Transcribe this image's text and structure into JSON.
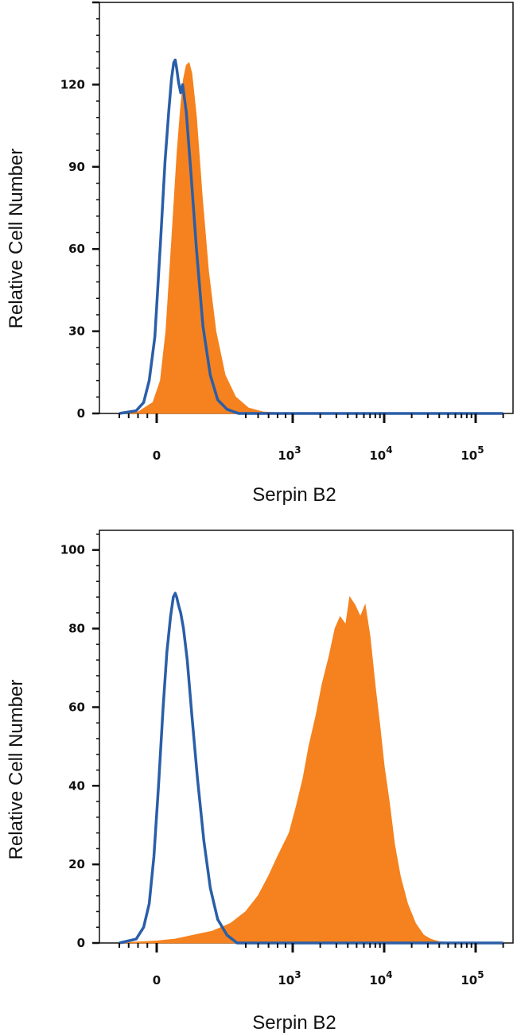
{
  "chart_data": [
    {
      "type": "area",
      "xscale": "biexponential",
      "xlabel": "Serpin B2",
      "ylabel": "Relative Cell Number",
      "ylim": [
        0,
        150
      ],
      "yticks": [
        0,
        30,
        60,
        90,
        120
      ],
      "ytick_labels": [
        "0",
        "30",
        "60",
        "90",
        "120"
      ],
      "xticks": [
        {
          "value": 0,
          "base": "0",
          "exp": ""
        },
        {
          "value": 1000,
          "base": "10",
          "exp": "3"
        },
        {
          "value": 10000,
          "base": "10",
          "exp": "4"
        },
        {
          "value": 100000,
          "base": "10",
          "exp": "5"
        }
      ],
      "grid": false,
      "legend": "none",
      "series": [
        {
          "style": "filled",
          "color": "#f5821f",
          "x": [
            -200,
            -100,
            -20,
            20,
            50,
            80,
            110,
            130,
            145,
            160,
            175,
            190,
            215,
            245,
            280,
            320,
            370,
            430,
            520,
            650,
            850,
            1000,
            2000,
            5000,
            20000,
            200000
          ],
          "y": [
            0,
            0.5,
            4,
            12,
            30,
            62,
            95,
            112,
            122,
            127,
            128,
            124,
            108,
            80,
            52,
            30,
            14,
            6,
            2,
            0.5,
            0.2,
            0,
            0,
            0,
            0,
            0
          ]
        },
        {
          "style": "outline",
          "color": "#2a5ea8",
          "x": [
            -200,
            -110,
            -70,
            -40,
            -10,
            20,
            45,
            65,
            80,
            92,
            100,
            108,
            118,
            130,
            140,
            160,
            185,
            215,
            250,
            290,
            330,
            380,
            450,
            700,
            1000,
            200000
          ],
          "y": [
            0,
            1,
            4,
            12,
            28,
            62,
            92,
            110,
            122,
            128,
            129,
            126,
            121,
            117,
            120,
            110,
            88,
            60,
            32,
            14,
            5,
            1.5,
            0,
            0,
            0,
            0
          ]
        }
      ]
    },
    {
      "type": "area",
      "xscale": "biexponential",
      "xlabel": "Serpin B2",
      "ylabel": "Relative Cell Number",
      "ylim": [
        0,
        100
      ],
      "yticks": [
        0,
        20,
        40,
        60,
        80,
        100
      ],
      "ytick_labels": [
        "0",
        "20",
        "40",
        "60",
        "80",
        "100"
      ],
      "xticks": [
        {
          "value": 0,
          "base": "0",
          "exp": ""
        },
        {
          "value": 1000,
          "base": "10",
          "exp": "3"
        },
        {
          "value": 10000,
          "base": "10",
          "exp": "4"
        },
        {
          "value": 100000,
          "base": "10",
          "exp": "5"
        }
      ],
      "grid": false,
      "legend": "none",
      "series": [
        {
          "style": "filled",
          "color": "#f5821f",
          "x": [
            -200,
            0,
            100,
            200,
            300,
            400,
            500,
            600,
            700,
            800,
            950,
            1100,
            1300,
            1500,
            1800,
            2100,
            2500,
            2900,
            3300,
            3800,
            4200,
            4800,
            5500,
            6200,
            7000,
            8000,
            9000,
            10000,
            11500,
            13000,
            15000,
            18000,
            22000,
            27000,
            32000,
            40000,
            60000,
            200000
          ],
          "y": [
            0,
            0.5,
            1,
            2,
            3,
            5,
            8,
            12,
            17,
            22,
            28,
            35,
            42,
            50,
            58,
            66,
            73,
            80,
            83,
            81,
            88,
            86,
            83,
            86,
            78,
            65,
            55,
            45,
            35,
            25,
            17,
            10,
            5,
            2,
            1,
            0.3,
            0,
            0
          ]
        },
        {
          "style": "outline",
          "color": "#2a5ea8",
          "x": [
            -200,
            -110,
            -70,
            -40,
            -15,
            10,
            35,
            55,
            75,
            90,
            100,
            108,
            118,
            130,
            145,
            165,
            190,
            220,
            255,
            290,
            330,
            380,
            440,
            700,
            1000,
            200000
          ],
          "y": [
            0,
            1,
            4,
            10,
            22,
            40,
            60,
            74,
            83,
            88,
            89,
            88,
            86,
            84,
            80,
            72,
            58,
            42,
            26,
            14,
            6,
            2,
            0,
            0,
            0,
            0
          ]
        }
      ]
    }
  ]
}
